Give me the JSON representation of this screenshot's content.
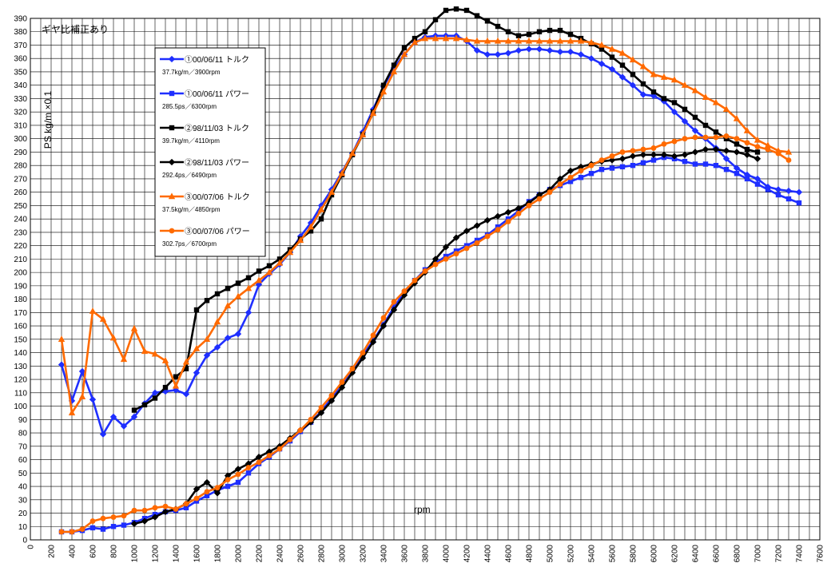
{
  "chart_data": {
    "type": "line",
    "annotation": "ギヤ比補正あり",
    "ylabel": "PS  kg/m ×0.1",
    "xlabel": "rpm",
    "xlim": [
      0,
      7600
    ],
    "ylim": [
      0,
      390
    ],
    "x_ticks": [
      0,
      200,
      400,
      600,
      800,
      1000,
      1200,
      1400,
      1600,
      1800,
      2000,
      2200,
      2400,
      2600,
      2800,
      3000,
      3200,
      3400,
      3600,
      3800,
      4000,
      4200,
      4400,
      4600,
      4800,
      5000,
      5200,
      5400,
      5600,
      5800,
      6000,
      6200,
      6400,
      6600,
      6800,
      7000,
      7200,
      7400,
      7600
    ],
    "y_ticks": [
      0,
      10,
      20,
      30,
      40,
      50,
      60,
      70,
      80,
      90,
      100,
      110,
      120,
      130,
      140,
      150,
      160,
      170,
      180,
      190,
      200,
      210,
      220,
      230,
      240,
      250,
      260,
      270,
      280,
      290,
      300,
      310,
      320,
      330,
      340,
      350,
      360,
      370,
      380,
      390
    ],
    "grid": true,
    "legend_position": "upper-left",
    "series": [
      {
        "name": "①00/06/11 トルク",
        "subtitle": "37.7kg/m／3900rpm",
        "color": "#1f2fff",
        "marker": "diamond",
        "x": [
          300,
          400,
          500,
          600,
          700,
          800,
          900,
          1000,
          1100,
          1200,
          1300,
          1400,
          1500,
          1600,
          1700,
          1800,
          1900,
          2000,
          2100,
          2200,
          2300,
          2400,
          2500,
          2600,
          2700,
          2800,
          2900,
          3000,
          3100,
          3200,
          3300,
          3400,
          3500,
          3600,
          3700,
          3800,
          3900,
          4000,
          4100,
          4200,
          4300,
          4400,
          4500,
          4600,
          4700,
          4800,
          4900,
          5000,
          5100,
          5200,
          5300,
          5400,
          5500,
          5600,
          5700,
          5800,
          5900,
          6000,
          6100,
          6200,
          6300,
          6400,
          6500,
          6600,
          6700,
          6800,
          6900,
          7000,
          7100,
          7200,
          7300,
          7400
        ],
        "values": [
          131,
          104,
          126,
          105,
          79,
          92,
          85,
          92,
          102,
          110,
          111,
          112,
          109,
          125,
          138,
          144,
          151,
          154,
          170,
          191,
          199,
          206,
          215,
          227,
          237,
          250,
          262,
          275,
          289,
          305,
          322,
          339,
          353,
          363,
          372,
          376,
          377,
          377,
          377,
          373,
          366,
          363,
          363,
          364,
          366,
          367,
          367,
          366,
          365,
          365,
          363,
          360,
          356,
          352,
          346,
          340,
          333,
          332,
          328,
          320,
          313,
          306,
          300,
          293,
          285,
          278,
          273,
          270,
          264,
          262,
          261,
          260
        ]
      },
      {
        "name": "①00/06/11 パワー",
        "subtitle": "285.5ps／6300rpm",
        "color": "#1f2fff",
        "marker": "square",
        "x": [
          300,
          400,
          500,
          600,
          700,
          800,
          900,
          1000,
          1100,
          1200,
          1300,
          1400,
          1500,
          1600,
          1700,
          1800,
          1900,
          2000,
          2100,
          2200,
          2300,
          2400,
          2500,
          2600,
          2700,
          2800,
          2900,
          3000,
          3100,
          3200,
          3300,
          3400,
          3500,
          3600,
          3700,
          3800,
          3900,
          4000,
          4100,
          4200,
          4300,
          4400,
          4500,
          4600,
          4700,
          4800,
          4900,
          5000,
          5100,
          5200,
          5300,
          5400,
          5500,
          5600,
          5700,
          5800,
          5900,
          6000,
          6100,
          6200,
          6300,
          6400,
          6500,
          6600,
          6700,
          6800,
          6900,
          7000,
          7100,
          7200,
          7300,
          7400
        ],
        "values": [
          6,
          6,
          7,
          9,
          8,
          10,
          11,
          13,
          16,
          19,
          21,
          22,
          24,
          29,
          33,
          37,
          40,
          43,
          50,
          57,
          62,
          68,
          74,
          81,
          88,
          96,
          106,
          117,
          127,
          138,
          149,
          161,
          174,
          185,
          194,
          202,
          207,
          212,
          216,
          220,
          224,
          228,
          234,
          240,
          246,
          253,
          258,
          262,
          265,
          268,
          271,
          274,
          277,
          278,
          279,
          280,
          282,
          284,
          286,
          285,
          283,
          281,
          281,
          280,
          277,
          274,
          270,
          266,
          262,
          258,
          255,
          252
        ]
      },
      {
        "name": "②98/11/03 トルク",
        "subtitle": "39.7kg/m／4110rpm",
        "color": "#000000",
        "marker": "square",
        "x": [
          1000,
          1100,
          1200,
          1300,
          1400,
          1500,
          1600,
          1700,
          1800,
          1900,
          2000,
          2100,
          2200,
          2300,
          2400,
          2500,
          2600,
          2700,
          2800,
          2900,
          3000,
          3100,
          3200,
          3300,
          3400,
          3500,
          3600,
          3700,
          3800,
          3900,
          4000,
          4100,
          4200,
          4300,
          4400,
          4500,
          4600,
          4700,
          4800,
          4900,
          5000,
          5100,
          5200,
          5300,
          5400,
          5500,
          5600,
          5700,
          5800,
          5900,
          6000,
          6100,
          6200,
          6300,
          6400,
          6500,
          6600,
          6700,
          6800,
          6900,
          7000
        ],
        "values": [
          97,
          101,
          106,
          114,
          122,
          128,
          172,
          179,
          184,
          188,
          192,
          196,
          201,
          205,
          210,
          217,
          225,
          231,
          240,
          258,
          273,
          288,
          303,
          320,
          340,
          355,
          368,
          375,
          380,
          389,
          396,
          397,
          396,
          392,
          388,
          384,
          380,
          377,
          378,
          380,
          381,
          381,
          378,
          375,
          371,
          367,
          361,
          355,
          348,
          341,
          335,
          330,
          327,
          322,
          316,
          310,
          305,
          300,
          296,
          292,
          290
        ]
      },
      {
        "name": "②98/11/03  パワー",
        "subtitle": "292.4ps／6490rpm",
        "color": "#000000",
        "marker": "diamond",
        "x": [
          1000,
          1100,
          1200,
          1300,
          1400,
          1500,
          1600,
          1700,
          1800,
          1900,
          2000,
          2100,
          2200,
          2300,
          2400,
          2500,
          2600,
          2700,
          2800,
          2900,
          3000,
          3100,
          3200,
          3300,
          3400,
          3500,
          3600,
          3700,
          3800,
          3900,
          4000,
          4100,
          4200,
          4300,
          4400,
          4500,
          4600,
          4700,
          4800,
          4900,
          5000,
          5100,
          5200,
          5300,
          5400,
          5500,
          5600,
          5700,
          5800,
          5900,
          6000,
          6100,
          6200,
          6300,
          6400,
          6500,
          6600,
          6700,
          6800,
          6900,
          7000
        ],
        "values": [
          12,
          14,
          17,
          21,
          23,
          27,
          38,
          43,
          35,
          48,
          53,
          57,
          62,
          66,
          70,
          76,
          82,
          88,
          95,
          104,
          114,
          125,
          136,
          148,
          160,
          172,
          183,
          192,
          200,
          210,
          219,
          226,
          231,
          235,
          239,
          242,
          245,
          248,
          252,
          258,
          262,
          270,
          276,
          279,
          281,
          283,
          284,
          285,
          287,
          288,
          288,
          288,
          287,
          288,
          290,
          292,
          292,
          291,
          290,
          288,
          285
        ]
      },
      {
        "name": "③00/07/06 トルク",
        "subtitle": "37.5kg/m／4850rpm",
        "color": "#ff6a00",
        "marker": "triangle",
        "x": [
          300,
          400,
          500,
          600,
          700,
          800,
          900,
          1000,
          1100,
          1200,
          1300,
          1400,
          1500,
          1600,
          1700,
          1800,
          1900,
          2000,
          2100,
          2200,
          2300,
          2400,
          2500,
          2600,
          2700,
          2800,
          2900,
          3000,
          3100,
          3200,
          3300,
          3400,
          3500,
          3600,
          3700,
          3800,
          3900,
          4000,
          4100,
          4200,
          4300,
          4400,
          4500,
          4600,
          4700,
          4800,
          4900,
          5000,
          5100,
          5200,
          5300,
          5400,
          5500,
          5600,
          5700,
          5800,
          5900,
          6000,
          6100,
          6200,
          6300,
          6400,
          6500,
          6600,
          6700,
          6800,
          6900,
          7000,
          7100,
          7200,
          7300
        ],
        "values": [
          150,
          95,
          107,
          171,
          165,
          151,
          135,
          158,
          141,
          139,
          134,
          115,
          133,
          143,
          150,
          163,
          175,
          182,
          188,
          194,
          200,
          207,
          215,
          224,
          234,
          247,
          260,
          274,
          289,
          303,
          319,
          335,
          350,
          363,
          372,
          375,
          375,
          375,
          375,
          374,
          373,
          373,
          373,
          373,
          373,
          373,
          373,
          373,
          373,
          373,
          373,
          372,
          370,
          367,
          364,
          359,
          354,
          348,
          346,
          344,
          340,
          336,
          331,
          327,
          322,
          315,
          306,
          299,
          295,
          291,
          290
        ]
      },
      {
        "name": "③00/07/06 パワー",
        "subtitle": "302.7ps／6700rpm",
        "color": "#ff6a00",
        "marker": "circle",
        "x": [
          300,
          400,
          500,
          600,
          700,
          800,
          900,
          1000,
          1100,
          1200,
          1300,
          1400,
          1500,
          1600,
          1700,
          1800,
          1900,
          2000,
          2100,
          2200,
          2300,
          2400,
          2500,
          2600,
          2700,
          2800,
          2900,
          3000,
          3100,
          3200,
          3300,
          3400,
          3500,
          3600,
          3700,
          3800,
          3900,
          4000,
          4100,
          4200,
          4300,
          4400,
          4500,
          4600,
          4700,
          4800,
          4900,
          5000,
          5100,
          5200,
          5300,
          5400,
          5500,
          5600,
          5700,
          5800,
          5900,
          6000,
          6100,
          6200,
          6300,
          6400,
          6500,
          6600,
          6700,
          6800,
          6900,
          7000,
          7100,
          7200,
          7300
        ],
        "values": [
          6,
          6,
          8,
          14,
          16,
          17,
          18,
          22,
          22,
          24,
          25,
          23,
          27,
          31,
          36,
          39,
          45,
          49,
          54,
          58,
          63,
          68,
          75,
          82,
          90,
          99,
          108,
          118,
          128,
          140,
          153,
          166,
          178,
          186,
          194,
          201,
          206,
          210,
          214,
          218,
          222,
          227,
          232,
          238,
          244,
          250,
          255,
          260,
          266,
          271,
          276,
          280,
          284,
          287,
          290,
          291,
          292,
          293,
          296,
          298,
          300,
          301,
          301,
          301,
          302,
          300,
          297,
          294,
          292,
          289,
          284
        ]
      }
    ]
  }
}
